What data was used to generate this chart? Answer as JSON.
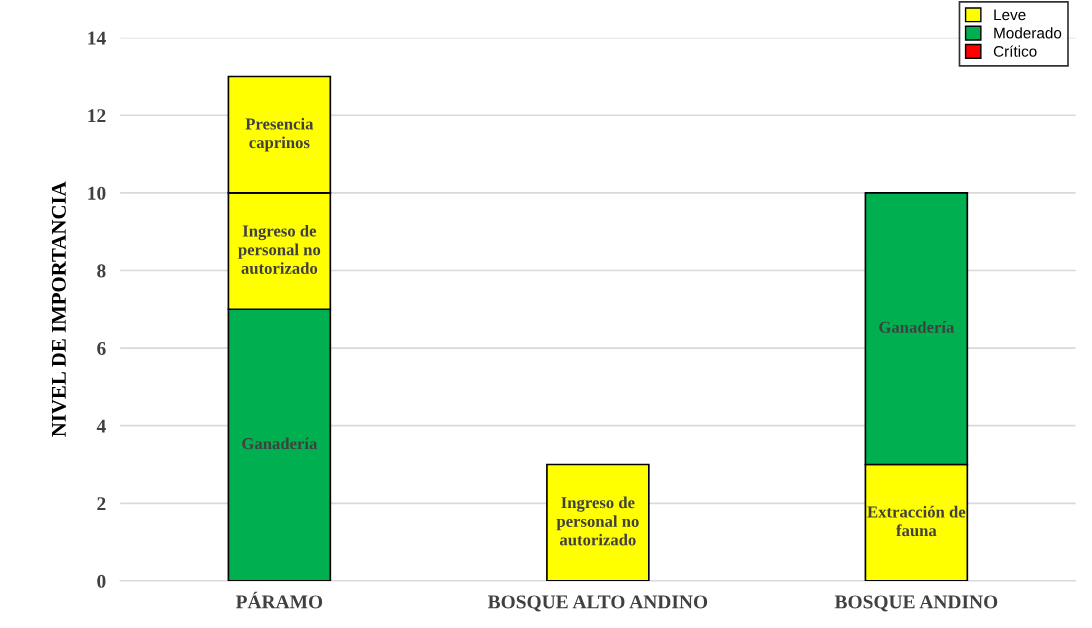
{
  "chart_data": {
    "type": "bar",
    "stacked": true,
    "ylabel": "NIVEL DE IMPORTANCIA",
    "categories": [
      "PÁRAMO",
      "BOSQUE ALTO ANDINO",
      "BOSQUE ANDINO"
    ],
    "series": [
      {
        "color": "#00b050",
        "values": [
          7,
          null,
          null
        ],
        "value_labels": [
          "Ganadería",
          null,
          null
        ]
      },
      {
        "name": "Leve",
        "color": "#ffff00",
        "values": [
          3,
          3,
          3
        ],
        "value_labels": [
          "Ingreso de\npersonal no\nautorizado",
          "Ingreso de\npersonal no\nautorizado",
          "Extracción de\nfauna"
        ]
      },
      {
        "color": "#ffff00",
        "values": [
          3,
          null,
          null
        ],
        "value_labels": [
          "Presencia\ncaprinos",
          null,
          null
        ]
      },
      {
        "name": "Moderado",
        "color": "#00b050",
        "values": [
          null,
          null,
          7
        ],
        "value_labels": [
          null,
          null,
          "Ganadería"
        ]
      },
      {
        "name": "Crítico",
        "color": "#ff0000",
        "values": [
          null,
          null,
          null
        ]
      }
    ],
    "ylim": [
      0,
      14
    ],
    "yticks": [
      0,
      2,
      4,
      6,
      8,
      10,
      12,
      14
    ],
    "grid": "y",
    "legend": "top right"
  }
}
